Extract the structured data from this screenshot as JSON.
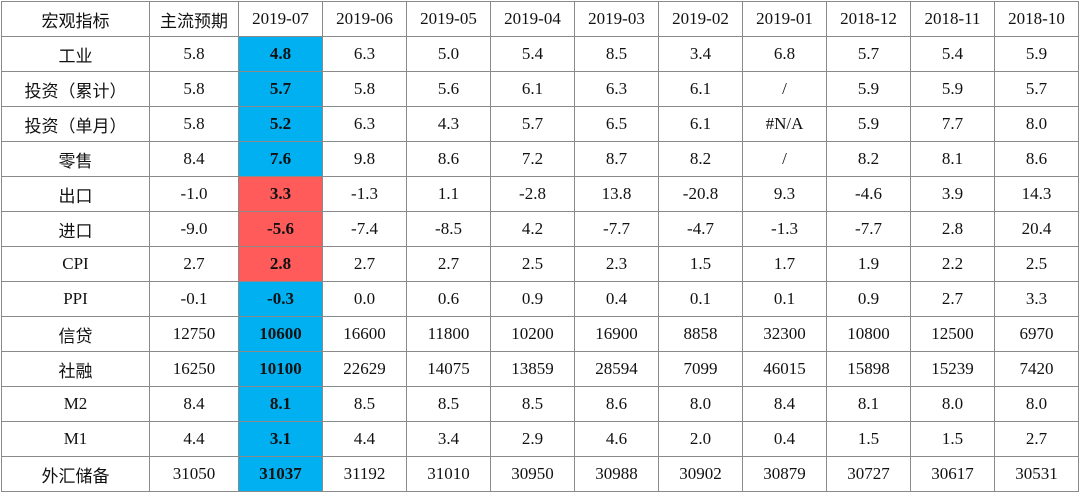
{
  "table": {
    "headers": [
      "宏观指标",
      "主流预期",
      "2019-07",
      "2019-06",
      "2019-05",
      "2019-04",
      "2019-03",
      "2019-02",
      "2019-01",
      "2018-12",
      "2018-11",
      "2018-10"
    ],
    "rows": [
      {
        "label": "工业",
        "expected": "5.8",
        "highlight": "4.8",
        "highlight_color": "blue",
        "values": [
          "6.3",
          "5.0",
          "5.4",
          "8.5",
          "3.4",
          "6.8",
          "5.7",
          "5.4",
          "5.9"
        ]
      },
      {
        "label": "投资（累计）",
        "expected": "5.8",
        "highlight": "5.7",
        "highlight_color": "blue",
        "values": [
          "5.8",
          "5.6",
          "6.1",
          "6.3",
          "6.1",
          "/",
          "5.9",
          "5.9",
          "5.7"
        ]
      },
      {
        "label": "投资（单月）",
        "expected": "5.8",
        "highlight": "5.2",
        "highlight_color": "blue",
        "values": [
          "6.3",
          "4.3",
          "5.7",
          "6.5",
          "6.1",
          "#N/A",
          "5.9",
          "7.7",
          "8.0"
        ]
      },
      {
        "label": "零售",
        "expected": "8.4",
        "highlight": "7.6",
        "highlight_color": "blue",
        "values": [
          "9.8",
          "8.6",
          "7.2",
          "8.7",
          "8.2",
          "/",
          "8.2",
          "8.1",
          "8.6"
        ]
      },
      {
        "label": "出口",
        "expected": "-1.0",
        "highlight": "3.3",
        "highlight_color": "red",
        "values": [
          "-1.3",
          "1.1",
          "-2.8",
          "13.8",
          "-20.8",
          "9.3",
          "-4.6",
          "3.9",
          "14.3"
        ]
      },
      {
        "label": "进口",
        "expected": "-9.0",
        "highlight": "-5.6",
        "highlight_color": "red",
        "values": [
          "-7.4",
          "-8.5",
          "4.2",
          "-7.7",
          "-4.7",
          "-1.3",
          "-7.7",
          "2.8",
          "20.4"
        ]
      },
      {
        "label": "CPI",
        "expected": "2.7",
        "highlight": "2.8",
        "highlight_color": "red",
        "values": [
          "2.7",
          "2.7",
          "2.5",
          "2.3",
          "1.5",
          "1.7",
          "1.9",
          "2.2",
          "2.5"
        ]
      },
      {
        "label": "PPI",
        "expected": "-0.1",
        "highlight": "-0.3",
        "highlight_color": "blue",
        "values": [
          "0.0",
          "0.6",
          "0.9",
          "0.4",
          "0.1",
          "0.1",
          "0.9",
          "2.7",
          "3.3"
        ]
      },
      {
        "label": "信贷",
        "expected": "12750",
        "highlight": "10600",
        "highlight_color": "blue",
        "values": [
          "16600",
          "11800",
          "10200",
          "16900",
          "8858",
          "32300",
          "10800",
          "12500",
          "6970"
        ]
      },
      {
        "label": "社融",
        "expected": "16250",
        "highlight": "10100",
        "highlight_color": "blue",
        "values": [
          "22629",
          "14075",
          "13859",
          "28594",
          "7099",
          "46015",
          "15898",
          "15239",
          "7420"
        ]
      },
      {
        "label": "M2",
        "expected": "8.4",
        "highlight": "8.1",
        "highlight_color": "blue",
        "values": [
          "8.5",
          "8.5",
          "8.5",
          "8.6",
          "8.0",
          "8.4",
          "8.1",
          "8.0",
          "8.0"
        ]
      },
      {
        "label": "M1",
        "expected": "4.4",
        "highlight": "3.1",
        "highlight_color": "blue",
        "values": [
          "4.4",
          "3.4",
          "2.9",
          "4.6",
          "2.0",
          "0.4",
          "1.5",
          "1.5",
          "2.7"
        ]
      },
      {
        "label": "外汇储备",
        "expected": "31050",
        "highlight": "31037",
        "highlight_color": "blue",
        "values": [
          "31192",
          "31010",
          "30950",
          "30988",
          "30902",
          "30879",
          "30727",
          "30617",
          "30531"
        ]
      }
    ],
    "colors": {
      "blue": "#00b0f0",
      "red": "#ff5b5b"
    }
  }
}
